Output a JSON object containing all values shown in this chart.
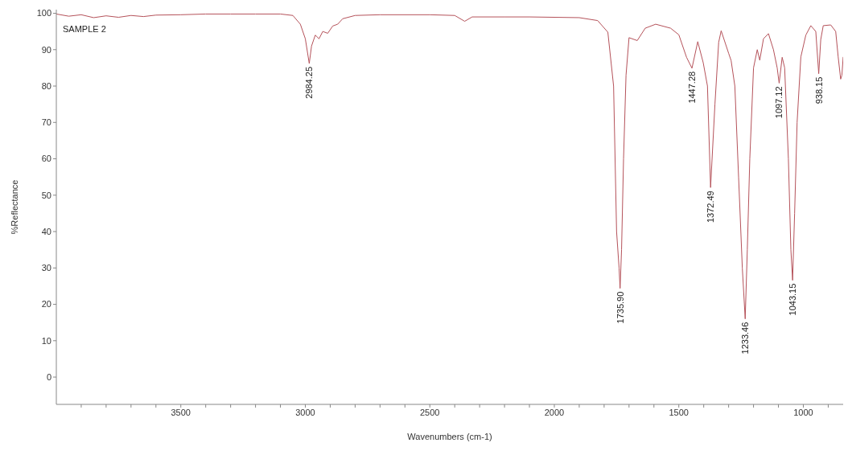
{
  "chart_data": {
    "type": "line",
    "xlabel": "Wavenumbers (cm-1)",
    "ylabel": "%Reflectance",
    "xlim": [
      4000,
      840
    ],
    "ylim": [
      -7.5,
      101
    ],
    "xticks": [
      {
        "value": 3900,
        "label": null
      },
      {
        "value": 3800,
        "label": null
      },
      {
        "value": 3700,
        "label": null
      },
      {
        "value": 3600,
        "label": null
      },
      3500,
      {
        "value": 3400,
        "label": null
      },
      {
        "value": 3300,
        "label": null
      },
      {
        "value": 3200,
        "label": null
      },
      {
        "value": 3100,
        "label": null
      },
      3000,
      {
        "value": 2900,
        "label": null
      },
      {
        "value": 2800,
        "label": null
      },
      {
        "value": 2700,
        "label": null
      },
      {
        "value": 2600,
        "label": null
      },
      2500,
      {
        "value": 2400,
        "label": null
      },
      {
        "value": 2300,
        "label": null
      },
      {
        "value": 2200,
        "label": null
      },
      {
        "value": 2100,
        "label": null
      },
      2000,
      {
        "value": 1900,
        "label": null
      },
      {
        "value": 1800,
        "label": null
      },
      {
        "value": 1700,
        "label": null
      },
      {
        "value": 1600,
        "label": null
      },
      1500,
      {
        "value": 1400,
        "label": null
      },
      {
        "value": 1300,
        "label": null
      },
      {
        "value": 1200,
        "label": null
      },
      {
        "value": 1100,
        "label": null
      },
      1000,
      {
        "value": 900,
        "label": null
      }
    ],
    "yticks": [
      0,
      10,
      20,
      30,
      40,
      50,
      60,
      70,
      80,
      90,
      100
    ],
    "marker": "none",
    "line_style": "solid",
    "x": [
      4000,
      3950,
      3900,
      3850,
      3800,
      3750,
      3700,
      3650,
      3600,
      3500,
      3400,
      3300,
      3200,
      3100,
      3050,
      3020,
      3000,
      2984.25,
      2975,
      2960,
      2945,
      2930,
      2910,
      2890,
      2870,
      2850,
      2800,
      2700,
      2500,
      2400,
      2360,
      2330,
      2200,
      2100,
      1900,
      1826,
      1785,
      1762,
      1750,
      1740,
      1735.9,
      1730,
      1722,
      1712,
      1700,
      1667,
      1635,
      1593,
      1533,
      1500,
      1469,
      1447.28,
      1424,
      1402,
      1385,
      1372.49,
      1355,
      1340,
      1330,
      1300,
      1290,
      1275,
      1260,
      1245,
      1233.46,
      1225,
      1215,
      1200,
      1185,
      1175,
      1160,
      1140,
      1120,
      1105,
      1097.12,
      1085,
      1075,
      1060,
      1050,
      1043.15,
      1035,
      1025,
      1010,
      990,
      970,
      950,
      938.15,
      930,
      920,
      890,
      870,
      860,
      850,
      845,
      840
    ],
    "series": [
      {
        "color": "#b5525a",
        "values": [
          99.8,
          99.2,
          99.6,
          98.8,
          99.3,
          98.9,
          99.4,
          99.1,
          99.5,
          99.6,
          99.8,
          99.8,
          99.8,
          99.8,
          99.4,
          97,
          93,
          86.2,
          91,
          94,
          93,
          95,
          94.5,
          96.5,
          97,
          98.5,
          99.4,
          99.6,
          99.6,
          99.4,
          97.8,
          99,
          99,
          99,
          98.8,
          98,
          94.8,
          80,
          40,
          30,
          24.4,
          35,
          60,
          83,
          93.3,
          92.5,
          95.9,
          97,
          95.9,
          94.1,
          87.9,
          84.9,
          92.2,
          86.4,
          80,
          52.1,
          75,
          92,
          95.2,
          89,
          87,
          80,
          55,
          30,
          16,
          35,
          60,
          85,
          90,
          87.1,
          93,
          94.4,
          90,
          85,
          80.8,
          87.9,
          85,
          60,
          35,
          26.6,
          45,
          70,
          88,
          94,
          96.6,
          95,
          83.4,
          92.8,
          96.6,
          96.8,
          95,
          88,
          81.9,
          83,
          88
        ]
      }
    ],
    "annotations": [
      "SAMPLE 2",
      {
        "text": "2984.25",
        "x": 2984.25,
        "y": 86.2
      },
      {
        "text": "1735.90",
        "x": 1735.9,
        "y": 24.4
      },
      {
        "text": "1447.28",
        "x": 1447.28,
        "y": 84.9
      },
      {
        "text": "1372.49",
        "x": 1372.49,
        "y": 52.1
      },
      {
        "text": "1233.46",
        "x": 1233.46,
        "y": 16
      },
      {
        "text": "1097.12",
        "x": 1097.12,
        "y": 80.8
      },
      {
        "text": "1043.15",
        "x": 1043.15,
        "y": 26.6
      },
      {
        "text": "938.15",
        "x": 938.15,
        "y": 83.4
      }
    ]
  }
}
